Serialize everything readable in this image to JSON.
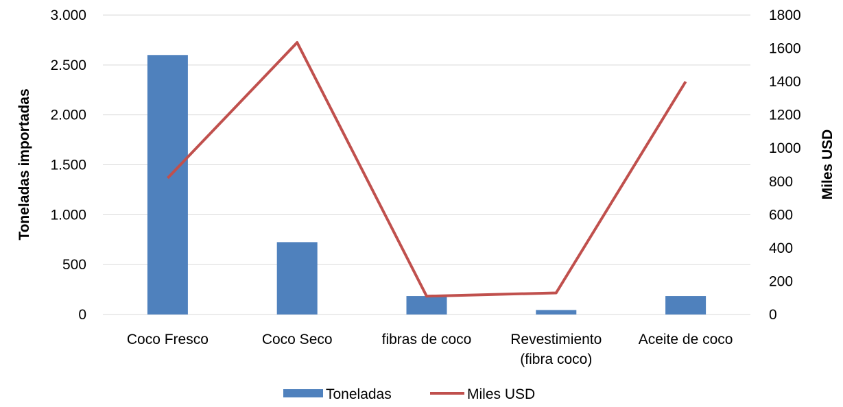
{
  "chart_data": {
    "type": "bar",
    "categories": [
      [
        "Coco Fresco"
      ],
      [
        "Coco Seco"
      ],
      [
        "fibras de coco"
      ],
      [
        "Revestimiento",
        "(fibra coco)"
      ],
      [
        "Aceite de coco"
      ]
    ],
    "series": [
      {
        "name": "Toneladas",
        "type": "bar",
        "axis": "left",
        "color": "#4F81BD",
        "values": [
          2600,
          725,
          185,
          45,
          185
        ]
      },
      {
        "name": "Miles USD",
        "type": "line",
        "axis": "right",
        "color": "#C0504D",
        "values": [
          820,
          1635,
          110,
          130,
          1400
        ]
      }
    ],
    "y_left": {
      "label": "Toneladas importadas",
      "ylim": [
        0,
        3000
      ],
      "ticks": [
        0,
        500,
        1000,
        1500,
        2000,
        2500,
        3000
      ],
      "tick_labels": [
        "0",
        "500",
        "1.000",
        "1.500",
        "2.000",
        "2.500",
        "3.000"
      ]
    },
    "y_right": {
      "label": "Miles USD",
      "ylim": [
        0,
        1800
      ],
      "ticks": [
        0,
        200,
        400,
        600,
        800,
        1000,
        1200,
        1400,
        1600,
        1800
      ],
      "tick_labels": [
        "0",
        "200",
        "400",
        "600",
        "800",
        "1000",
        "1200",
        "1400",
        "1600",
        "1800"
      ]
    },
    "grid": true,
    "legend": "bottom",
    "gridline_color": "#D9D9D9"
  }
}
